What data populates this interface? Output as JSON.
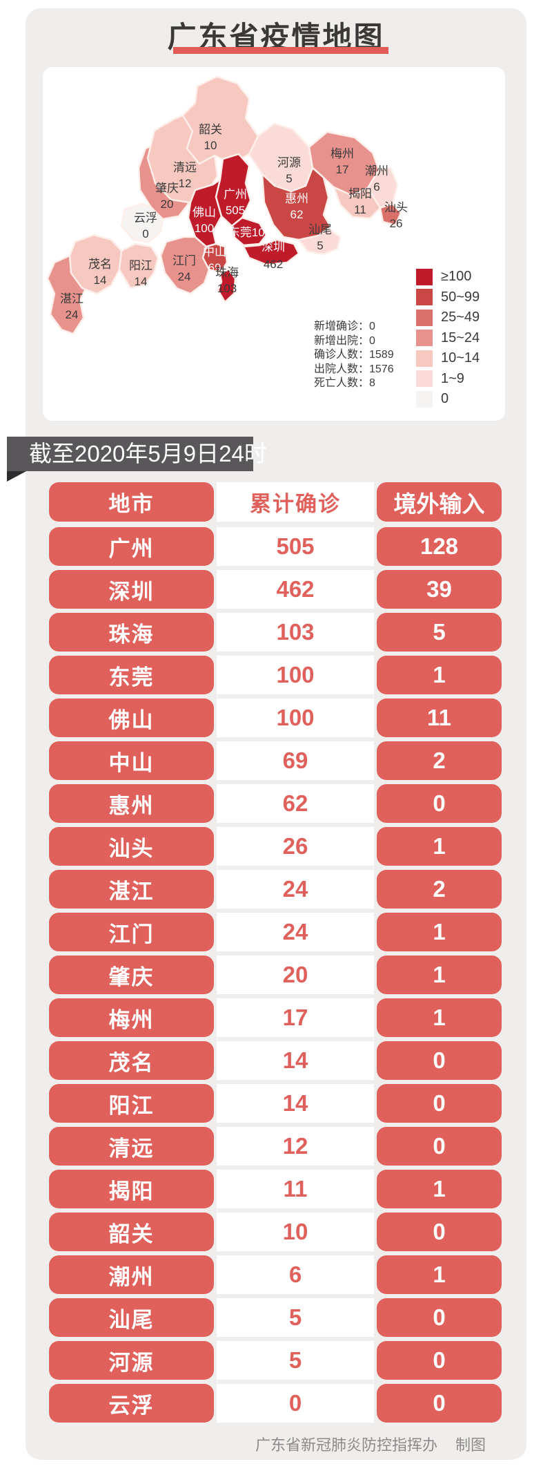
{
  "page": {
    "title": "广东省疫情地图",
    "title_underline_color": "#e25b56",
    "banner_text": "截至2020年5月9日24时",
    "banner_bg": "#59575a",
    "table_accent_color": "#e0605c",
    "footer_credit": "广东省新冠肺炎防控指挥办",
    "footer_suffix": "制图"
  },
  "map": {
    "stats": [
      {
        "label": "新增确诊",
        "value": "0"
      },
      {
        "label": "新增出院",
        "value": "0"
      },
      {
        "label": "确诊人数",
        "value": "1589"
      },
      {
        "label": "出院人数",
        "value": "1576"
      },
      {
        "label": "死亡人数",
        "value": "8"
      }
    ],
    "legend": [
      {
        "label": "≥100",
        "color": "#bf1b2b"
      },
      {
        "label": "50~99",
        "color": "#c94744"
      },
      {
        "label": "25~49",
        "color": "#d9706a"
      },
      {
        "label": "15~24",
        "color": "#e8928e"
      },
      {
        "label": "10~14",
        "color": "#f6c8bf"
      },
      {
        "label": "1~9",
        "color": "#fadbd7"
      },
      {
        "label": "0",
        "color": "#f5f4f2"
      }
    ],
    "cities": [
      {
        "name": "湛江",
        "value": 24,
        "bucket": "15~24",
        "color": "#e8928e",
        "label_color": "#3a3a3a"
      },
      {
        "name": "茂名",
        "value": 14,
        "bucket": "10~14",
        "color": "#f6c8bf",
        "label_color": "#3a3a3a"
      },
      {
        "name": "阳江",
        "value": 14,
        "bucket": "10~14",
        "color": "#f6c8bf",
        "label_color": "#3a3a3a"
      },
      {
        "name": "云浮",
        "value": 0,
        "bucket": "0",
        "color": "#f5f4f2",
        "label_color": "#3a3a3a"
      },
      {
        "name": "肇庆",
        "value": 20,
        "bucket": "15~24",
        "color": "#e8928e",
        "label_color": "#3a3a3a"
      },
      {
        "name": "清远",
        "value": 12,
        "bucket": "10~14",
        "color": "#f6c8bf",
        "label_color": "#3a3a3a"
      },
      {
        "name": "韶关",
        "value": 10,
        "bucket": "10~14",
        "color": "#f6c8bf",
        "label_color": "#3a3a3a"
      },
      {
        "name": "河源",
        "value": 5,
        "bucket": "1~9",
        "color": "#fadbd7",
        "label_color": "#3a3a3a"
      },
      {
        "name": "梅州",
        "value": 17,
        "bucket": "15~24",
        "color": "#e8928e",
        "label_color": "#3a3a3a"
      },
      {
        "name": "潮州",
        "value": 6,
        "bucket": "1~9",
        "color": "#fadbd7",
        "label_color": "#3a3a3a"
      },
      {
        "name": "揭阳",
        "value": 11,
        "bucket": "10~14",
        "color": "#f6c8bf",
        "label_color": "#3a3a3a"
      },
      {
        "name": "汕头",
        "value": 26,
        "bucket": "25~49",
        "color": "#d9706a",
        "label_color": "#3a3a3a"
      },
      {
        "name": "汕尾",
        "value": 5,
        "bucket": "1~9",
        "color": "#fadbd7",
        "label_color": "#3a3a3a"
      },
      {
        "name": "惠州",
        "value": 62,
        "bucket": "50~99",
        "color": "#c94744",
        "label_color": "#ffffff"
      },
      {
        "name": "江门",
        "value": 24,
        "bucket": "15~24",
        "color": "#e8928e",
        "label_color": "#3a3a3a"
      },
      {
        "name": "佛山",
        "value": 100,
        "bucket": "≥100",
        "color": "#bf1b2b",
        "label_color": "#ffffff"
      },
      {
        "name": "广州",
        "value": 505,
        "bucket": "≥100",
        "color": "#bf1b2b",
        "label_color": "#ffffff"
      },
      {
        "name": "东莞",
        "value": 100,
        "bucket": "≥100",
        "color": "#bf1b2b",
        "label_color": "#ffffff",
        "inline": true
      },
      {
        "name": "深圳",
        "value": 462,
        "bucket": "≥100",
        "color": "#bf1b2b",
        "label_color": "#ffffff",
        "value_color": "#3a3a3a"
      },
      {
        "name": "中山",
        "value": 69,
        "bucket": "50~99",
        "color": "#c94744",
        "label_color": "#ffffff"
      },
      {
        "name": "珠海",
        "value": 103,
        "bucket": "≥100",
        "color": "#bf1b2b",
        "label_color": "#3a3a3a"
      }
    ]
  },
  "table": {
    "headers": [
      "地市",
      "累计确诊",
      "境外输入"
    ],
    "rows": [
      [
        "广州",
        "505",
        "128"
      ],
      [
        "深圳",
        "462",
        "39"
      ],
      [
        "珠海",
        "103",
        "5"
      ],
      [
        "东莞",
        "100",
        "1"
      ],
      [
        "佛山",
        "100",
        "11"
      ],
      [
        "中山",
        "69",
        "2"
      ],
      [
        "惠州",
        "62",
        "0"
      ],
      [
        "汕头",
        "26",
        "1"
      ],
      [
        "湛江",
        "24",
        "2"
      ],
      [
        "江门",
        "24",
        "1"
      ],
      [
        "肇庆",
        "20",
        "1"
      ],
      [
        "梅州",
        "17",
        "1"
      ],
      [
        "茂名",
        "14",
        "0"
      ],
      [
        "阳江",
        "14",
        "0"
      ],
      [
        "清远",
        "12",
        "0"
      ],
      [
        "揭阳",
        "11",
        "1"
      ],
      [
        "韶关",
        "10",
        "0"
      ],
      [
        "潮州",
        "6",
        "1"
      ],
      [
        "汕尾",
        "5",
        "0"
      ],
      [
        "河源",
        "5",
        "0"
      ],
      [
        "云浮",
        "0",
        "0"
      ]
    ]
  },
  "chart_data": [
    {
      "type": "heatmap",
      "subtype": "choropleth-map",
      "title": "广东省疫情地图",
      "categories": [
        "广州",
        "深圳",
        "珠海",
        "东莞",
        "佛山",
        "中山",
        "惠州",
        "汕头",
        "湛江",
        "江门",
        "肇庆",
        "梅州",
        "茂名",
        "阳江",
        "清远",
        "揭阳",
        "韶关",
        "潮州",
        "汕尾",
        "河源",
        "云浮"
      ],
      "values": [
        505,
        462,
        103,
        100,
        100,
        69,
        62,
        26,
        24,
        24,
        20,
        17,
        14,
        14,
        12,
        11,
        10,
        6,
        5,
        5,
        0
      ],
      "legend_entries": [
        "≥100",
        "50~99",
        "25~49",
        "15~24",
        "10~14",
        "1~9",
        "0"
      ],
      "legend_position": "bottom-right",
      "annotations": [
        "新增确诊：0",
        "新增出院：0",
        "确诊人数：1589",
        "出院人数：1576",
        "死亡人数：8"
      ]
    },
    {
      "type": "table",
      "title": "截至2020年5月9日24时",
      "columns": [
        "地市",
        "累计确诊",
        "境外输入"
      ],
      "rows": [
        [
          "广州",
          505,
          128
        ],
        [
          "深圳",
          462,
          39
        ],
        [
          "珠海",
          103,
          5
        ],
        [
          "东莞",
          100,
          1
        ],
        [
          "佛山",
          100,
          11
        ],
        [
          "中山",
          69,
          2
        ],
        [
          "惠州",
          62,
          0
        ],
        [
          "汕头",
          26,
          1
        ],
        [
          "湛江",
          24,
          2
        ],
        [
          "江门",
          24,
          1
        ],
        [
          "肇庆",
          20,
          1
        ],
        [
          "梅州",
          17,
          1
        ],
        [
          "茂名",
          14,
          0
        ],
        [
          "阳江",
          14,
          0
        ],
        [
          "清远",
          12,
          0
        ],
        [
          "揭阳",
          11,
          1
        ],
        [
          "韶关",
          10,
          0
        ],
        [
          "潮州",
          6,
          1
        ],
        [
          "汕尾",
          5,
          0
        ],
        [
          "河源",
          5,
          0
        ],
        [
          "云浮",
          0,
          0
        ]
      ],
      "footer": "广东省新冠肺炎防控指挥办 制图"
    }
  ]
}
